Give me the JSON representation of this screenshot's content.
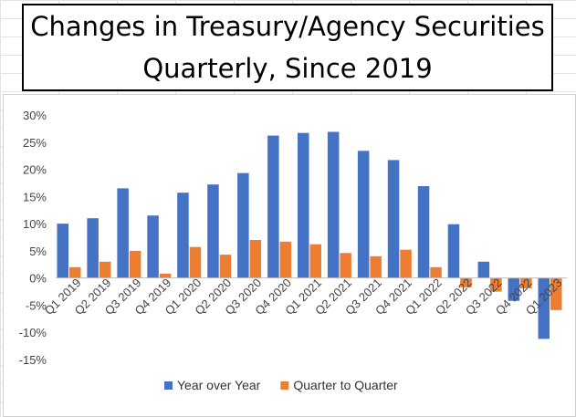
{
  "header": {
    "title_line1": "Changes in Treasury/Agency Securities",
    "title_line2": "Quarterly, Since 2019"
  },
  "chart_data": {
    "type": "bar",
    "categories": [
      "Q1 2019",
      "Q2 2019",
      "Q3 2019",
      "Q4 2019",
      "Q1 2020",
      "Q2 2020",
      "Q3 2020",
      "Q4 2020",
      "Q1 2021",
      "Q2 2021",
      "Q3 2021",
      "Q4 2021",
      "Q1 2022",
      "Q2 2022",
      "Q3 2022",
      "Q4 2022",
      "Q1 2023"
    ],
    "series": [
      {
        "name": "Year over Year",
        "color": "#4472c4",
        "values": [
          10.0,
          11.0,
          16.5,
          11.5,
          15.7,
          17.2,
          19.3,
          26.2,
          26.7,
          26.9,
          23.4,
          21.7,
          16.9,
          9.9,
          3.0,
          -4.2,
          -11.2
        ]
      },
      {
        "name": "Quarter to Quarter",
        "color": "#ed7d31",
        "values": [
          2.0,
          3.0,
          5.0,
          0.8,
          5.7,
          4.3,
          7.0,
          6.7,
          6.2,
          4.6,
          4.0,
          5.2,
          2.0,
          -1.7,
          -2.5,
          -1.9,
          -5.9
        ]
      }
    ],
    "yticks": [
      "30%",
      "25%",
      "20%",
      "15%",
      "10%",
      "5%",
      "0%",
      "-5%",
      "-10%",
      "-15%"
    ],
    "ytick_values": [
      30,
      25,
      20,
      15,
      10,
      5,
      0,
      -5,
      -10,
      -15
    ],
    "ylim": [
      -15,
      30
    ],
    "legend_position": "bottom",
    "grid": false
  }
}
